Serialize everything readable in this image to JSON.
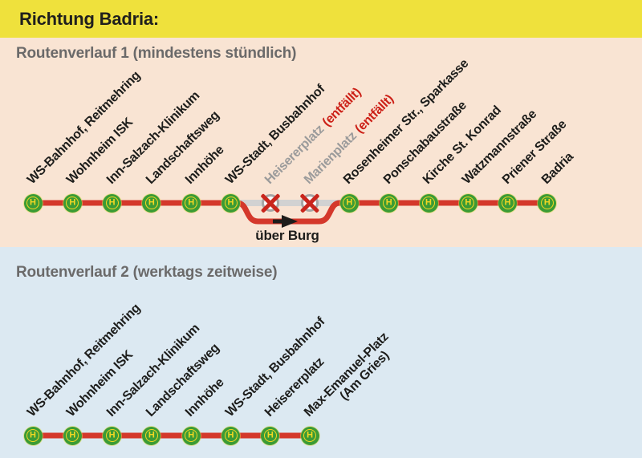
{
  "header": {
    "title": "Richtung Badria:"
  },
  "legend": {
    "stop_symbol": "H",
    "stop_symbol_meaning": "Haltestelle"
  },
  "colors": {
    "banner_bg": "#efe13c",
    "route1_bg": "#f9e4d3",
    "route2_bg": "#dce9f2",
    "line_red": "#d4382b",
    "line_gray_skipped": "#d2d2d2",
    "stop_green": "#3b9b35",
    "stop_yellow": "#f3d723",
    "cancelled_gray": "#9b9b9b",
    "cancelled_note_red": "#cc2017",
    "title_gray": "#6b6a6a",
    "text_dark": "#1d1d1b"
  },
  "routes": [
    {
      "title": "Routenverlauf 1 (mindestens stündlich)",
      "detour_label": "über Burg",
      "stops": [
        {
          "name": "WS-Bahnhof, Reitmehring"
        },
        {
          "name": "Wohnheim ISK"
        },
        {
          "name": "Inn-Salzach-Klinikum"
        },
        {
          "name": "Landschaftsweg"
        },
        {
          "name": "Innhöhe"
        },
        {
          "name": "WS-Stadt, Busbahnhof"
        },
        {
          "name": "Heisererplatz",
          "cancelled": true,
          "note": "(entfällt)"
        },
        {
          "name": "Marienplatz",
          "cancelled": true,
          "note": "(entfällt)"
        },
        {
          "name": "Rosenheimer Str., Sparkasse"
        },
        {
          "name": "Ponschabaustraße"
        },
        {
          "name": "Kirche St. Konrad"
        },
        {
          "name": "Watzmannstraße"
        },
        {
          "name": "Priener Straße"
        },
        {
          "name": "Badria"
        }
      ]
    },
    {
      "title": "Routenverlauf 2 (werktags zeitweise)",
      "stops": [
        {
          "name": "WS-Bahnhof, Reitmehring"
        },
        {
          "name": "Wohnheim ISK"
        },
        {
          "name": "Inn-Salzach-Klinikum"
        },
        {
          "name": "Landschaftsweg"
        },
        {
          "name": "Innhöhe"
        },
        {
          "name": "WS-Stadt, Busbahnhof"
        },
        {
          "name": "Heisererplatz"
        },
        {
          "name": "Max-Emanuel-Platz",
          "name2": "(Am Gries)"
        }
      ]
    }
  ]
}
